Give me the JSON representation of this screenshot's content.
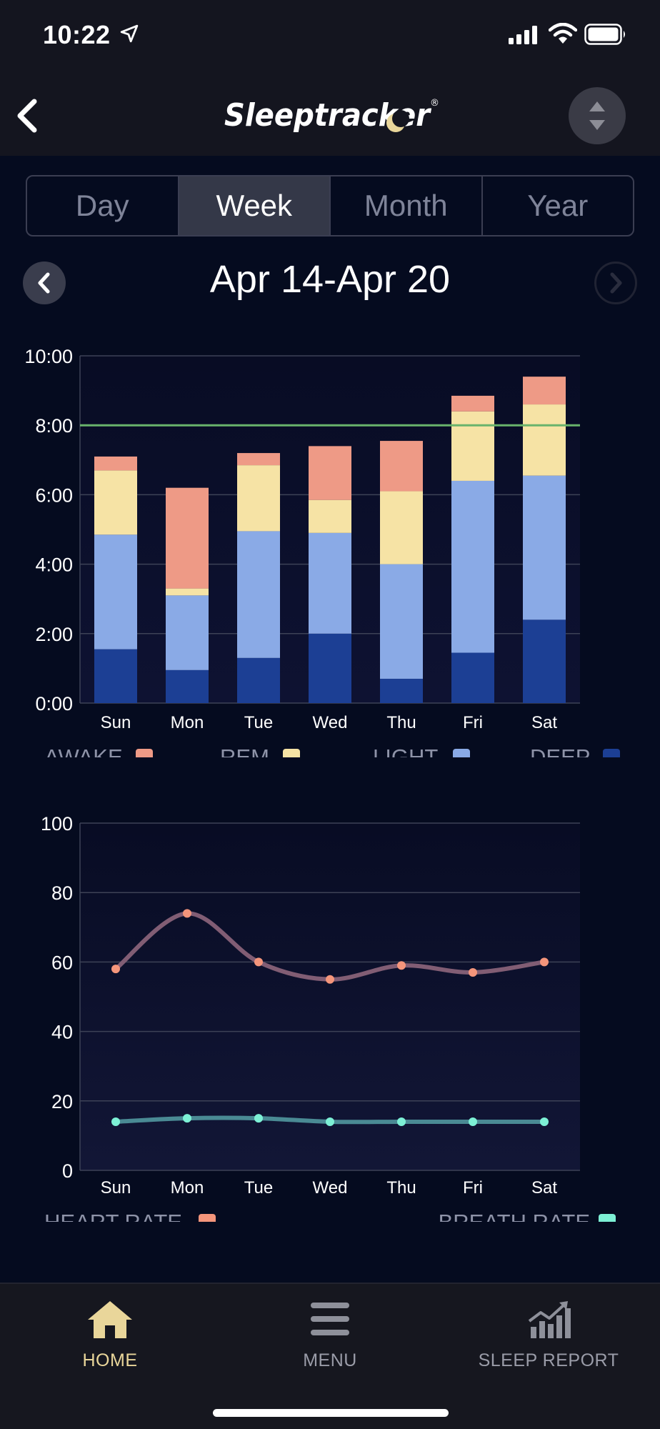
{
  "status_bar": {
    "time": "10:22"
  },
  "header": {
    "app_name": "Sleeptracker",
    "registered_mark": "®"
  },
  "tabs": [
    {
      "label": "Day",
      "active": false
    },
    {
      "label": "Week",
      "active": true
    },
    {
      "label": "Month",
      "active": false
    },
    {
      "label": "Year",
      "active": false
    }
  ],
  "date_nav": {
    "range": "Apr 14-Apr 20"
  },
  "colors": {
    "awake": "#ee9a86",
    "rem": "#f6e3a5",
    "light": "#8aaae6",
    "deep": "#1c3f94",
    "goal": "#69b36c",
    "heart": "#f4957b",
    "heart_line": "#815d74",
    "breath": "#7df0d5",
    "breath_line": "#4a8a94"
  },
  "chart_data": [
    {
      "type": "bar",
      "stacked": true,
      "categories": [
        "Sun",
        "Mon",
        "Tue",
        "Wed",
        "Thu",
        "Fri",
        "Sat"
      ],
      "y_ticks": [
        "0:00",
        "2:00",
        "4:00",
        "6:00",
        "8:00",
        "10:00"
      ],
      "ylim": [
        0,
        10
      ],
      "goal_line": 8,
      "series": [
        {
          "name": "DEEP",
          "values": [
            1.55,
            0.95,
            1.3,
            2.0,
            0.7,
            1.45,
            2.4
          ]
        },
        {
          "name": "LIGHT",
          "values": [
            3.3,
            2.15,
            3.65,
            2.9,
            3.3,
            4.95,
            4.15
          ]
        },
        {
          "name": "REM",
          "values": [
            1.85,
            0.2,
            1.9,
            0.95,
            2.1,
            2.0,
            2.05
          ]
        },
        {
          "name": "AWAKE",
          "values": [
            0.4,
            2.9,
            0.35,
            1.55,
            1.45,
            0.45,
            0.8
          ]
        }
      ],
      "legend": [
        "AWAKE",
        "REM",
        "LIGHT",
        "DEEP"
      ]
    },
    {
      "type": "line",
      "categories": [
        "Sun",
        "Mon",
        "Tue",
        "Wed",
        "Thu",
        "Fri",
        "Sat"
      ],
      "y_ticks": [
        "0",
        "20",
        "40",
        "60",
        "80",
        "100"
      ],
      "ylim": [
        0,
        100
      ],
      "series": [
        {
          "name": "HEART RATE",
          "values": [
            58,
            74,
            60,
            55,
            59,
            57,
            60
          ]
        },
        {
          "name": "BREATH RATE",
          "values": [
            14,
            15,
            15,
            14,
            14,
            14,
            14
          ]
        }
      ],
      "legend": [
        "HEART RATE",
        "BREATH RATE"
      ]
    }
  ],
  "bottom_nav": [
    {
      "label": "HOME",
      "icon": "home-icon",
      "active": true
    },
    {
      "label": "MENU",
      "icon": "menu-icon",
      "active": false
    },
    {
      "label": "SLEEP REPORT",
      "icon": "sleep-report-icon",
      "active": false
    }
  ]
}
